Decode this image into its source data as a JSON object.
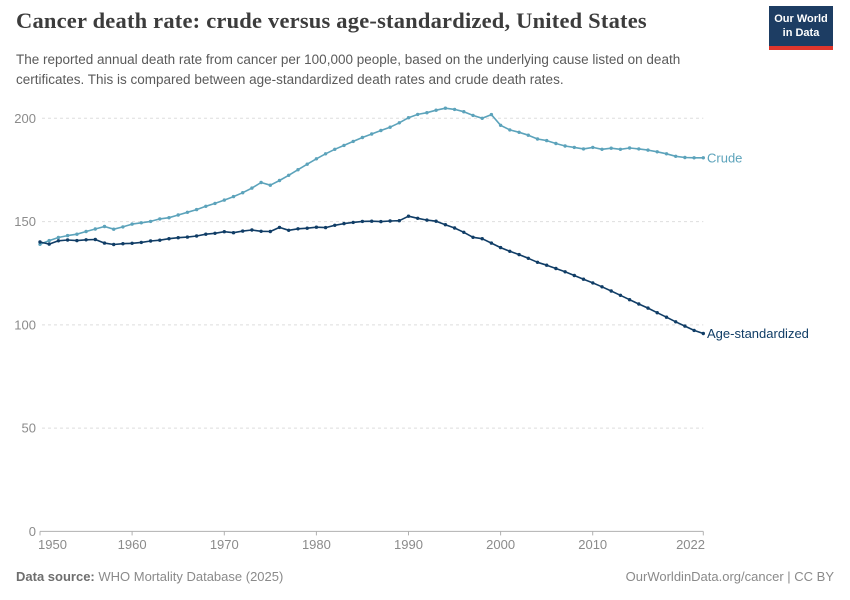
{
  "header": {
    "title": "Cancer death rate: crude versus age-standardized, United States",
    "subtitle": "The reported annual death rate from cancer per 100,000 people, based on the underlying cause listed on death certificates. This is compared between age-standardized death rates and crude death rates.",
    "logo": {
      "line1": "Our World",
      "line2": "in Data",
      "bg_color": "#1d3d63",
      "stripe_color": "#e0362c"
    }
  },
  "chart_data": {
    "type": "line",
    "title": "Cancer death rate: crude versus age-standardized, United States",
    "xlabel": "",
    "ylabel": "",
    "grid": "horizontal dashed",
    "legend_position": "end-of-line labels",
    "ylim": [
      0,
      210
    ],
    "yticks": [
      0,
      50,
      100,
      150,
      200
    ],
    "ytick_labels": [
      "0",
      "50",
      "100",
      "150",
      "200"
    ],
    "xticks": [
      1950,
      1960,
      1970,
      1980,
      1990,
      2000,
      2010,
      2022
    ],
    "xtick_labels": [
      "1950",
      "1960",
      "1970",
      "1980",
      "1990",
      "2000",
      "2010",
      "2022"
    ],
    "x": [
      1950,
      1951,
      1952,
      1953,
      1954,
      1955,
      1956,
      1957,
      1958,
      1959,
      1960,
      1961,
      1962,
      1963,
      1964,
      1965,
      1966,
      1967,
      1968,
      1969,
      1970,
      1971,
      1972,
      1973,
      1974,
      1975,
      1976,
      1977,
      1978,
      1979,
      1980,
      1981,
      1982,
      1983,
      1984,
      1985,
      1986,
      1987,
      1988,
      1989,
      1990,
      1991,
      1992,
      1993,
      1994,
      1995,
      1996,
      1997,
      1998,
      1999,
      2000,
      2001,
      2002,
      2003,
      2004,
      2005,
      2006,
      2007,
      2008,
      2009,
      2010,
      2011,
      2012,
      2013,
      2014,
      2015,
      2016,
      2017,
      2018,
      2019,
      2020,
      2021,
      2022
    ],
    "series": [
      {
        "name": "Crude",
        "color": "#5ca3bb",
        "values": [
          139.0,
          140.8,
          142.3,
          143.2,
          143.9,
          145.2,
          146.4,
          147.6,
          146.3,
          147.4,
          148.8,
          149.4,
          150.1,
          151.3,
          151.9,
          153.2,
          154.5,
          155.8,
          157.4,
          158.8,
          160.4,
          162.1,
          164.0,
          166.2,
          168.9,
          167.6,
          169.9,
          172.4,
          175.1,
          177.8,
          180.4,
          182.8,
          185.0,
          186.9,
          188.8,
          190.7,
          192.4,
          194.1,
          195.7,
          197.8,
          200.3,
          201.9,
          202.7,
          203.9,
          204.9,
          204.3,
          203.2,
          201.4,
          200.0,
          201.8,
          196.6,
          194.4,
          193.2,
          191.8,
          190.0,
          189.2,
          187.8,
          186.6,
          185.9,
          185.2,
          185.9,
          185.0,
          185.5,
          185.0,
          185.6,
          185.2,
          184.6,
          183.8,
          182.8,
          181.6,
          181.0,
          180.9,
          180.9
        ]
      },
      {
        "name": "Age-standardized",
        "color": "#103d66",
        "values": [
          140.1,
          139.1,
          140.7,
          141.1,
          140.8,
          141.2,
          141.3,
          139.6,
          138.9,
          139.3,
          139.5,
          139.9,
          140.6,
          141.0,
          141.7,
          142.2,
          142.5,
          143.0,
          143.9,
          144.3,
          145.1,
          144.6,
          145.4,
          145.9,
          145.3,
          145.2,
          147.2,
          145.8,
          146.5,
          146.8,
          147.3,
          147.1,
          148.2,
          149.0,
          149.6,
          150.1,
          150.2,
          150.0,
          150.3,
          150.4,
          152.6,
          151.6,
          150.7,
          150.2,
          148.5,
          146.9,
          144.8,
          142.4,
          141.7,
          139.6,
          137.4,
          135.6,
          134.0,
          132.2,
          130.3,
          128.9,
          127.3,
          125.7,
          123.9,
          122.1,
          120.3,
          118.4,
          116.4,
          114.3,
          112.2,
          110.1,
          108.1,
          105.9,
          103.7,
          101.5,
          99.4,
          97.3,
          95.8
        ]
      }
    ],
    "gridline_color": "#dedede",
    "axis_color": "#b0b0b0",
    "tick_label_color": "#8b8b8b"
  },
  "footer": {
    "source_label": "Data source:",
    "source_value": " WHO Mortality Database (2025)",
    "credit": "OurWorldinData.org/cancer | CC BY"
  }
}
